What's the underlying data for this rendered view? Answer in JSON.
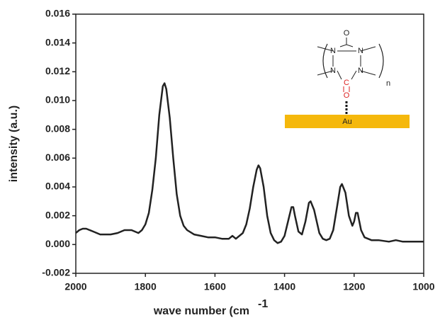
{
  "chart_data": {
    "type": "line",
    "xlabel": "wave number  (cm",
    "xlabel_superscript": "-1",
    "ylabel": "intensity (a.u.)",
    "xlim": [
      2000,
      1000
    ],
    "xticks": [
      2000,
      1800,
      1600,
      1400,
      1200,
      1000
    ],
    "ylim": [
      -0.002,
      0.016
    ],
    "yticks": [
      {
        "value": -0.002,
        "label": "-0.002"
      },
      {
        "value": 0,
        "label": "0.000"
      },
      {
        "value": 0.002,
        "label": "0.002"
      },
      {
        "value": 0.004,
        "label": "0.004"
      },
      {
        "value": 0.006,
        "label": "0.006"
      },
      {
        "value": 0.008,
        "label": "0.008"
      },
      {
        "value": 0.01,
        "label": "0.010"
      },
      {
        "value": 0.012,
        "label": "0.012"
      },
      {
        "value": 0.014,
        "label": "0.014"
      },
      {
        "value": 0.016,
        "label": "0.016"
      }
    ],
    "series": [
      {
        "color": "#222222",
        "x": [
          2000,
          1990,
          1980,
          1970,
          1950,
          1930,
          1900,
          1880,
          1860,
          1840,
          1820,
          1810,
          1800,
          1790,
          1780,
          1770,
          1760,
          1750,
          1745,
          1740,
          1730,
          1720,
          1710,
          1700,
          1690,
          1680,
          1660,
          1640,
          1620,
          1600,
          1580,
          1560,
          1550,
          1540,
          1520,
          1510,
          1500,
          1490,
          1480,
          1475,
          1470,
          1460,
          1450,
          1440,
          1430,
          1420,
          1410,
          1400,
          1390,
          1380,
          1375,
          1370,
          1360,
          1350,
          1340,
          1330,
          1325,
          1315,
          1300,
          1290,
          1280,
          1270,
          1260,
          1250,
          1240,
          1235,
          1225,
          1215,
          1205,
          1200,
          1195,
          1190,
          1180,
          1170,
          1150,
          1130,
          1100,
          1080,
          1060,
          1040,
          1020,
          1000
        ],
        "values": [
          0.0008,
          0.001,
          0.0011,
          0.0011,
          0.0009,
          0.0007,
          0.0007,
          0.0008,
          0.001,
          0.001,
          0.0008,
          0.001,
          0.0014,
          0.0022,
          0.0038,
          0.006,
          0.009,
          0.011,
          0.0112,
          0.0108,
          0.0088,
          0.006,
          0.0035,
          0.002,
          0.0013,
          0.001,
          0.0007,
          0.0006,
          0.0005,
          0.0005,
          0.0004,
          0.0004,
          0.0006,
          0.0004,
          0.0008,
          0.0014,
          0.0025,
          0.004,
          0.0052,
          0.0055,
          0.0053,
          0.004,
          0.002,
          0.0008,
          0.0003,
          0.0001,
          0.0002,
          0.0006,
          0.0016,
          0.0026,
          0.0026,
          0.002,
          0.0009,
          0.0007,
          0.0016,
          0.0029,
          0.003,
          0.0024,
          0.0008,
          0.0004,
          0.0003,
          0.0004,
          0.001,
          0.0025,
          0.004,
          0.0042,
          0.0036,
          0.002,
          0.0013,
          0.0016,
          0.0022,
          0.0022,
          0.001,
          0.0005,
          0.0003,
          0.0003,
          0.0002,
          0.0003,
          0.0002,
          0.0002,
          0.0002,
          0.0002
        ]
      }
    ],
    "inset": {
      "top_o": "O",
      "n1": "N",
      "n2": "N",
      "n3": "N",
      "n4": "N",
      "carbon": "C",
      "carbonyl_o": "O",
      "repeat": "n",
      "surface": "Au"
    }
  }
}
